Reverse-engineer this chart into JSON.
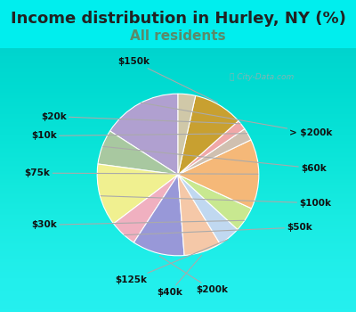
{
  "title": "Income distribution in Hurley, NY (%)",
  "subtitle": "All residents",
  "title_color": "#222222",
  "subtitle_color": "#5a8a6a",
  "bg_color": "#00eeee",
  "chart_bg_top": "#e8f8f0",
  "chart_bg_bottom": "#d0eee8",
  "slices": [
    {
      "label": "> $200k",
      "value": 16.0,
      "color": "#b0a0d0"
    },
    {
      "label": "$60k",
      "value": 7.0,
      "color": "#a8c8a0"
    },
    {
      "label": "$100k",
      "value": 12.5,
      "color": "#f0f090"
    },
    {
      "label": "$50k",
      "value": 5.5,
      "color": "#f0b0c0"
    },
    {
      "label": "$200k",
      "value": 10.5,
      "color": "#9898d8"
    },
    {
      "label": "$40k",
      "value": 7.5,
      "color": "#f5c8a8"
    },
    {
      "label": "$125k",
      "value": 4.5,
      "color": "#c0d8f0"
    },
    {
      "label": "$30k",
      "value": 5.0,
      "color": "#c8e890"
    },
    {
      "label": "$75k",
      "value": 14.0,
      "color": "#f5b878"
    },
    {
      "label": "$10k",
      "value": 2.5,
      "color": "#d0c0b0"
    },
    {
      "label": "$20k",
      "value": 2.0,
      "color": "#f0a8a8"
    },
    {
      "label": "$150k",
      "value": 10.0,
      "color": "#c8a030"
    },
    {
      "label": "$10k_s",
      "value": 3.5,
      "color": "#d0c8a8"
    }
  ],
  "label_map": {
    "> $200k": "> $200k",
    "$60k": "$60k",
    "$100k": "$100k",
    "$50k": "$50k",
    "$200k": "$200k",
    "$40k": "$40k",
    "$125k": "$125k",
    "$30k": "$30k",
    "$75k": "$75k",
    "$10k": "$10k",
    "$20k": "$20k",
    "$150k": "$150k",
    "$10k_s": ""
  }
}
